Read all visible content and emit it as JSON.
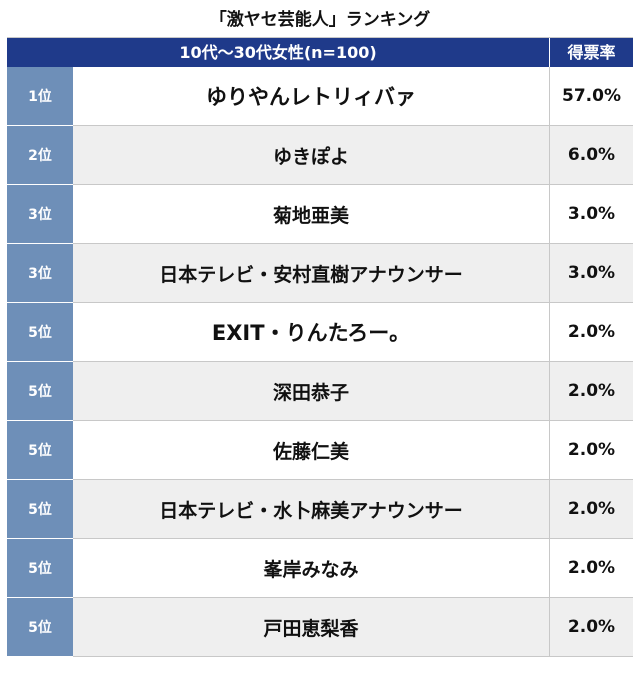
{
  "title": "「激ヤセ芸能人」ランキング",
  "header": {
    "group": "10代〜30代女性(n=100)",
    "score_col": "得票率"
  },
  "rows": [
    {
      "rank": "1位",
      "name": "ゆりやんレトリィバァ",
      "score": "57.0%"
    },
    {
      "rank": "2位",
      "name": "ゆきぽよ",
      "score": "6.0%"
    },
    {
      "rank": "3位",
      "name": "菊地亜美",
      "score": "3.0%"
    },
    {
      "rank": "3位",
      "name": "日本テレビ・安村直樹アナウンサー",
      "score": "3.0%"
    },
    {
      "rank": "5位",
      "name": "EXIT・りんたろー。",
      "score": "2.0%"
    },
    {
      "rank": "5位",
      "name": "深田恭子",
      "score": "2.0%"
    },
    {
      "rank": "5位",
      "name": "佐藤仁美",
      "score": "2.0%"
    },
    {
      "rank": "5位",
      "name": "日本テレビ・水卜麻美アナウンサー",
      "score": "2.0%"
    },
    {
      "rank": "5位",
      "name": "峯岸みなみ",
      "score": "2.0%"
    },
    {
      "rank": "5位",
      "name": "戸田恵梨香",
      "score": "2.0%"
    }
  ],
  "colors": {
    "header_bg": "#1f3a8a",
    "rank_bg": "#6e8fb8",
    "alt_row_bg": "#efefef"
  }
}
